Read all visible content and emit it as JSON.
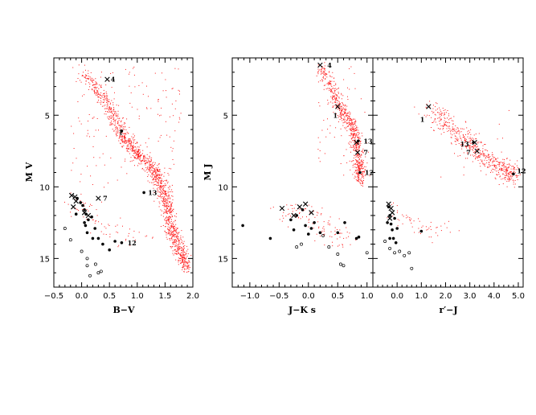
{
  "figure": {
    "panels_count": 3
  },
  "colors": {
    "field": "#ff1a1a",
    "filled": "#000000",
    "open": "#000000"
  },
  "chart_data": [
    {
      "type": "scatter",
      "id": "bv",
      "xlabel": "B−V",
      "ylabel": "M V",
      "xlim": [
        -0.5,
        2.0
      ],
      "ylim": [
        17,
        1
      ],
      "invert_y": true,
      "xticks": [
        -0.5,
        0.0,
        0.5,
        1.0,
        1.5,
        2.0
      ],
      "xtick_labels": [
        "−0.5",
        "0.0",
        "0.5",
        "1.0",
        "1.5",
        "2.0"
      ],
      "yticks": [
        5,
        10,
        15
      ],
      "ytick_labels": [
        "5",
        "10",
        "15"
      ],
      "show_yticklabels": true,
      "field_sequence": {
        "count": 1400,
        "track": [
          [
            0.0,
            2.0
          ],
          [
            0.35,
            3.5
          ],
          [
            0.55,
            5.0
          ],
          [
            0.75,
            6.5
          ],
          [
            1.0,
            7.7
          ],
          [
            1.25,
            8.6
          ],
          [
            1.42,
            9.6
          ],
          [
            1.52,
            11.0
          ],
          [
            1.58,
            12.6
          ],
          [
            1.7,
            14.0
          ],
          [
            1.9,
            15.7
          ]
        ],
        "spread_x": 0.06,
        "spread_y": 0.25,
        "scatter_count": 160,
        "scatter_box": [
          [
            -0.2,
            1.8
          ],
          [
            1.5,
            10.0
          ]
        ],
        "lower_count": 70,
        "lower_track": [
          [
            -0.2,
            10.8
          ],
          [
            0.2,
            11.8
          ],
          [
            0.6,
            13.0
          ],
          [
            1.0,
            14.0
          ]
        ],
        "lower_spread": 0.4
      },
      "filled_points": [
        [
          -0.08,
          10.8
        ],
        [
          -0.02,
          11.1
        ],
        [
          0.02,
          11.3
        ],
        [
          0.05,
          11.6
        ],
        [
          0.08,
          11.9
        ],
        [
          0.12,
          12.3
        ],
        [
          0.07,
          12.7
        ],
        [
          0.18,
          12.1
        ],
        [
          0.24,
          12.9
        ],
        [
          0.1,
          13.2
        ],
        [
          0.3,
          13.6
        ],
        [
          0.38,
          14.0
        ],
        [
          0.5,
          14.4
        ],
        [
          0.2,
          13.6
        ],
        [
          0.05,
          12.5
        ],
        [
          0.6,
          13.8
        ],
        [
          -0.1,
          11.9
        ]
      ],
      "crosses": [
        [
          0.46,
          2.5
        ],
        [
          -0.18,
          10.6
        ],
        [
          -0.12,
          10.7
        ],
        [
          -0.1,
          11.0
        ],
        [
          -0.15,
          11.4
        ],
        [
          0.05,
          11.8
        ],
        [
          0.12,
          12.0
        ],
        [
          0.3,
          10.8
        ]
      ],
      "open_points": [
        [
          -0.3,
          12.9
        ],
        [
          -0.2,
          13.7
        ],
        [
          0.0,
          14.5
        ],
        [
          0.1,
          15.0
        ],
        [
          0.25,
          15.4
        ],
        [
          0.15,
          16.2
        ],
        [
          0.35,
          15.9
        ],
        [
          0.1,
          15.5
        ],
        [
          0.3,
          16.0
        ]
      ],
      "labels": [
        {
          "text": "4",
          "x": 0.48,
          "y": 2.5
        },
        {
          "text": "1",
          "x": 0.62,
          "y": 6.2
        },
        {
          "text": "13",
          "x": 1.15,
          "y": 10.4
        },
        {
          "text": "7",
          "x": 0.34,
          "y": 10.8
        },
        {
          "text": "12",
          "x": 0.78,
          "y": 13.9
        }
      ],
      "label_marks": [
        {
          "kind": "filled",
          "x": 0.72,
          "y": 6.1
        },
        {
          "kind": "filled",
          "x": 1.12,
          "y": 10.4
        },
        {
          "kind": "filled",
          "x": 0.72,
          "y": 13.9
        }
      ]
    },
    {
      "type": "scatter",
      "id": "jk",
      "xlabel": "J−K s",
      "ylabel": "M J",
      "xlim": [
        -1.3,
        1.1
      ],
      "ylim": [
        17,
        1
      ],
      "invert_y": true,
      "xticks": [
        -1.0,
        -0.5,
        0.0,
        0.5,
        1.0
      ],
      "xtick_labels": [
        "−1.0",
        "−0.5",
        "0.0",
        "0.5",
        "1.0"
      ],
      "yticks": [
        5,
        10,
        15
      ],
      "ytick_labels": [
        "5",
        "10",
        "15"
      ],
      "show_yticklabels": true,
      "field_sequence": {
        "count": 700,
        "track": [
          [
            0.2,
            1.5
          ],
          [
            0.35,
            2.8
          ],
          [
            0.5,
            4.2
          ],
          [
            0.65,
            5.2
          ],
          [
            0.78,
            6.2
          ],
          [
            0.84,
            7.5
          ],
          [
            0.86,
            8.6
          ],
          [
            0.88,
            9.6
          ]
        ],
        "spread_x": 0.05,
        "spread_y": 0.25,
        "scatter_count": 60,
        "scatter_box": [
          [
            0.15,
            1.0
          ],
          [
            1.5,
            9.5
          ]
        ],
        "lower_count": 110,
        "lower_track": [
          [
            -0.4,
            11.5
          ],
          [
            0.0,
            12.0
          ],
          [
            0.3,
            13.0
          ],
          [
            0.6,
            14.0
          ]
        ],
        "lower_spread": 0.35
      },
      "filled_points": [
        [
          -1.12,
          12.7
        ],
        [
          -0.65,
          13.6
        ],
        [
          -0.3,
          12.3
        ],
        [
          -0.2,
          12.0
        ],
        [
          -0.05,
          12.7
        ],
        [
          0.0,
          13.3
        ],
        [
          -0.1,
          11.6
        ],
        [
          0.1,
          12.5
        ],
        [
          0.05,
          12.9
        ],
        [
          0.2,
          13.2
        ],
        [
          0.5,
          13.2
        ],
        [
          0.62,
          12.5
        ],
        [
          0.82,
          13.6
        ],
        [
          0.86,
          13.5
        ],
        [
          -0.25,
          13.0
        ]
      ],
      "crosses": [
        [
          0.2,
          1.5
        ],
        [
          0.5,
          4.4
        ],
        [
          0.82,
          6.9
        ],
        [
          0.84,
          7.6
        ],
        [
          -0.45,
          11.5
        ],
        [
          -0.15,
          11.4
        ],
        [
          -0.05,
          11.2
        ],
        [
          0.05,
          11.8
        ],
        [
          -0.25,
          12.0
        ]
      ],
      "open_points": [
        [
          -0.12,
          14.0
        ],
        [
          -0.2,
          14.2
        ],
        [
          0.35,
          14.2
        ],
        [
          0.5,
          14.7
        ],
        [
          0.55,
          15.4
        ],
        [
          1.0,
          14.6
        ],
        [
          0.25,
          13.4
        ],
        [
          0.6,
          15.5
        ]
      ],
      "labels": [
        {
          "text": "4",
          "x": 0.28,
          "y": 1.5
        },
        {
          "text": "1",
          "x": 0.38,
          "y": 5.0
        },
        {
          "text": "13",
          "x": 0.9,
          "y": 6.8
        },
        {
          "text": "7",
          "x": 0.9,
          "y": 7.6
        },
        {
          "text": "12",
          "x": 0.92,
          "y": 9.0
        }
      ],
      "label_marks": [
        {
          "kind": "filled",
          "x": 0.85,
          "y": 6.8
        },
        {
          "kind": "filled",
          "x": 0.88,
          "y": 9.0
        }
      ]
    },
    {
      "type": "scatter",
      "id": "rj",
      "xlabel": "r′−J",
      "ylabel": "",
      "xlim": [
        -1.0,
        5.2
      ],
      "ylim": [
        17,
        1
      ],
      "invert_y": true,
      "xticks": [
        0.0,
        1.0,
        2.0,
        3.0,
        4.0,
        5.0
      ],
      "xtick_labels": [
        "0.0",
        "1.0",
        "2.0",
        "3.0",
        "4.0",
        "5.0"
      ],
      "yticks": [
        5,
        10,
        15
      ],
      "ytick_labels": [
        "",
        "",
        ""
      ],
      "show_yticklabels": false,
      "field_sequence": {
        "count": 550,
        "track": [
          [
            1.2,
            4.3
          ],
          [
            2.0,
            5.6
          ],
          [
            2.8,
            6.8
          ],
          [
            3.5,
            7.8
          ],
          [
            4.3,
            8.7
          ],
          [
            4.8,
            9.2
          ]
        ],
        "spread_x": 0.2,
        "spread_y": 0.35,
        "scatter_count": 30,
        "scatter_box": [
          [
            1.0,
            4.9
          ],
          [
            4.0,
            9.5
          ]
        ],
        "lower_count": 55,
        "lower_track": [
          [
            -0.3,
            11.5
          ],
          [
            0.5,
            12.5
          ],
          [
            1.5,
            13.0
          ],
          [
            2.5,
            13.2
          ]
        ],
        "lower_spread": 0.35
      },
      "filled_points": [
        [
          -0.35,
          11.4
        ],
        [
          -0.3,
          12.0
        ],
        [
          -0.25,
          12.6
        ],
        [
          -0.2,
          13.0
        ],
        [
          -0.1,
          12.2
        ],
        [
          -0.3,
          13.6
        ],
        [
          -0.15,
          13.6
        ],
        [
          0.0,
          12.9
        ],
        [
          -0.05,
          13.9
        ],
        [
          1.0,
          13.1
        ],
        [
          -0.4,
          12.5
        ]
      ],
      "crosses": [
        [
          1.3,
          4.4
        ],
        [
          3.2,
          6.9
        ],
        [
          3.3,
          7.5
        ],
        [
          -0.35,
          11.2
        ],
        [
          -0.25,
          11.5
        ],
        [
          -0.2,
          11.8
        ],
        [
          -0.3,
          12.2
        ]
      ],
      "open_points": [
        [
          -0.5,
          13.8
        ],
        [
          -0.3,
          14.3
        ],
        [
          0.1,
          14.5
        ],
        [
          0.3,
          14.8
        ],
        [
          0.5,
          14.6
        ],
        [
          0.6,
          15.7
        ],
        [
          -0.1,
          14.6
        ]
      ],
      "labels": [
        {
          "text": "1",
          "x": 0.85,
          "y": 5.3
        },
        {
          "text": "13",
          "x": 2.5,
          "y": 7.0
        },
        {
          "text": "7",
          "x": 2.75,
          "y": 7.6
        },
        {
          "text": "12",
          "x": 4.85,
          "y": 8.9
        }
      ],
      "label_marks": [
        {
          "kind": "filled",
          "x": 3.15,
          "y": 6.9
        },
        {
          "kind": "filled",
          "x": 4.8,
          "y": 9.1
        }
      ]
    }
  ]
}
